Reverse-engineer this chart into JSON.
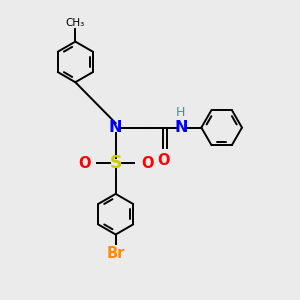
{
  "bg_color": "#ebebeb",
  "line_color": "#000000",
  "N_color": "#0000ff",
  "O_color": "#ff0000",
  "S_color": "#cccc00",
  "Br_color": "#ff8c00",
  "H_color": "#4a9090",
  "lw": 1.4,
  "r": 0.68,
  "xlim": [
    0,
    10
  ],
  "ylim": [
    0,
    10
  ],
  "label_fs": 10.5
}
